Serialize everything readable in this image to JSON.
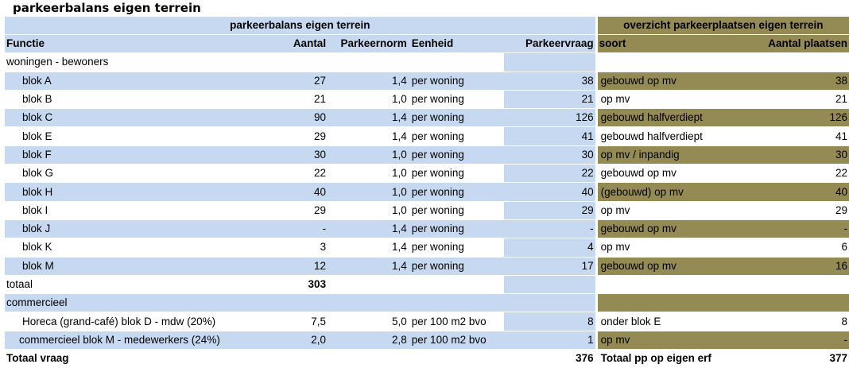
{
  "page_title": "parkeerbalans eigen terrein",
  "header": {
    "left_group": "parkeerbalans eigen terrein",
    "right_group": "overzicht parkeerplaatsen eigen terrein",
    "col_functie": "Functie",
    "col_aantal": "Aantal",
    "col_parkeernorm": "Parkeernorm",
    "col_eenheid": "Eenheid",
    "col_parkeervraag": "Parkeervraag",
    "col_soort": "soort",
    "col_aantal_plaatsen": "Aantal plaatsen"
  },
  "section_woningen": "woningen - bewoners",
  "rows": [
    {
      "functie": "blok A",
      "aantal": "27",
      "norm": "1,4",
      "eenheid": "per woning",
      "vraag": "38",
      "soort": "gebouwd op mv",
      "plaatsen": "38"
    },
    {
      "functie": "blok B",
      "aantal": "21",
      "norm": "1,0",
      "eenheid": "per woning",
      "vraag": "21",
      "soort": "op mv",
      "plaatsen": "21"
    },
    {
      "functie": "blok C",
      "aantal": "90",
      "norm": "1,4",
      "eenheid": "per woning",
      "vraag": "126",
      "soort": "gebouwd halfverdiept",
      "plaatsen": "126"
    },
    {
      "functie": "blok E",
      "aantal": "29",
      "norm": "1,4",
      "eenheid": "per woning",
      "vraag": "41",
      "soort": "gebouwd halfverdiept",
      "plaatsen": "41"
    },
    {
      "functie": "blok F",
      "aantal": "30",
      "norm": "1,0",
      "eenheid": "per woning",
      "vraag": "30",
      "soort": "op mv / inpandig",
      "plaatsen": "30"
    },
    {
      "functie": "blok G",
      "aantal": "22",
      "norm": "1,0",
      "eenheid": "per woning",
      "vraag": "22",
      "soort": "gebouwd op mv",
      "plaatsen": "22"
    },
    {
      "functie": "blok H",
      "aantal": "40",
      "norm": "1,0",
      "eenheid": "per woning",
      "vraag": "40",
      "soort": "(gebouwd) op mv",
      "plaatsen": "40"
    },
    {
      "functie": "blok I",
      "aantal": "29",
      "norm": "1,0",
      "eenheid": "per woning",
      "vraag": "29",
      "soort": "op mv",
      "plaatsen": "29"
    },
    {
      "functie": "blok J",
      "aantal": "-",
      "norm": "1,4",
      "eenheid": "per woning",
      "vraag": "-",
      "soort": "gebouwd op mv",
      "plaatsen": "-"
    },
    {
      "functie": "blok K",
      "aantal": "3",
      "norm": "1,4",
      "eenheid": "per woning",
      "vraag": "4",
      "soort": "op mv",
      "plaatsen": "6"
    },
    {
      "functie": "blok M",
      "aantal": "12",
      "norm": "1,4",
      "eenheid": "per woning",
      "vraag": "17",
      "soort": "gebouwd op mv",
      "plaatsen": "16"
    }
  ],
  "totaal": {
    "label": "totaal",
    "aantal": "303"
  },
  "section_commercieel": "commercieel",
  "commercieel_rows": [
    {
      "functie": "Horeca (grand-café) blok D - mdw (20%)",
      "aantal": "7,5",
      "norm": "5,0",
      "eenheid": "per 100 m2 bvo",
      "vraag": "8",
      "soort": "onder blok E",
      "plaatsen": "8"
    },
    {
      "functie": "commercieel blok M - medewerkers (24%)",
      "aantal": "2,0",
      "norm": "2,8",
      "eenheid": "per 100 m2 bvo",
      "vraag": "1",
      "soort": "op mv",
      "plaatsen": "-"
    }
  ],
  "footer": {
    "totaal_vraag_label": "Totaal vraag",
    "totaal_vraag_value": "376",
    "totaal_pp_label": "Totaal pp op eigen erf",
    "totaal_pp_value": "377"
  },
  "colors": {
    "left_bg": "#c6d9f0",
    "right_bg": "#948a54"
  }
}
